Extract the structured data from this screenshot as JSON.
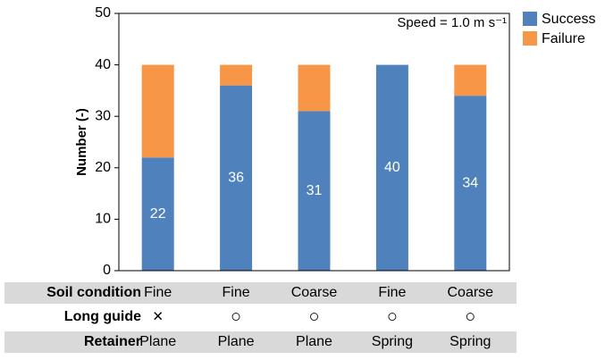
{
  "chart_data": {
    "type": "stacked-bar",
    "annotation": "Speed = 1.0 m s⁻¹",
    "ylabel": "Number (-)",
    "series": [
      {
        "name": "Success",
        "color": "#4f81bd",
        "values": [
          22,
          36,
          31,
          40,
          34
        ]
      },
      {
        "name": "Failure",
        "color": "#f79646",
        "values": [
          18,
          4,
          9,
          0,
          6
        ]
      }
    ],
    "ylim": [
      0,
      50
    ],
    "yticks": [
      0,
      10,
      20,
      30,
      40,
      50
    ],
    "grid": false,
    "table": {
      "rows": [
        {
          "label": "Soil condition",
          "cells": [
            "Fine",
            "Fine",
            "Coarse",
            "Fine",
            "Coarse"
          ]
        },
        {
          "label": "Long guide",
          "cells": [
            "×",
            "○",
            "○",
            "○",
            "○"
          ]
        },
        {
          "label": "Retainer",
          "cells": [
            "Plane",
            "Plane",
            "Plane",
            "Spring",
            "Spring"
          ]
        }
      ]
    }
  }
}
